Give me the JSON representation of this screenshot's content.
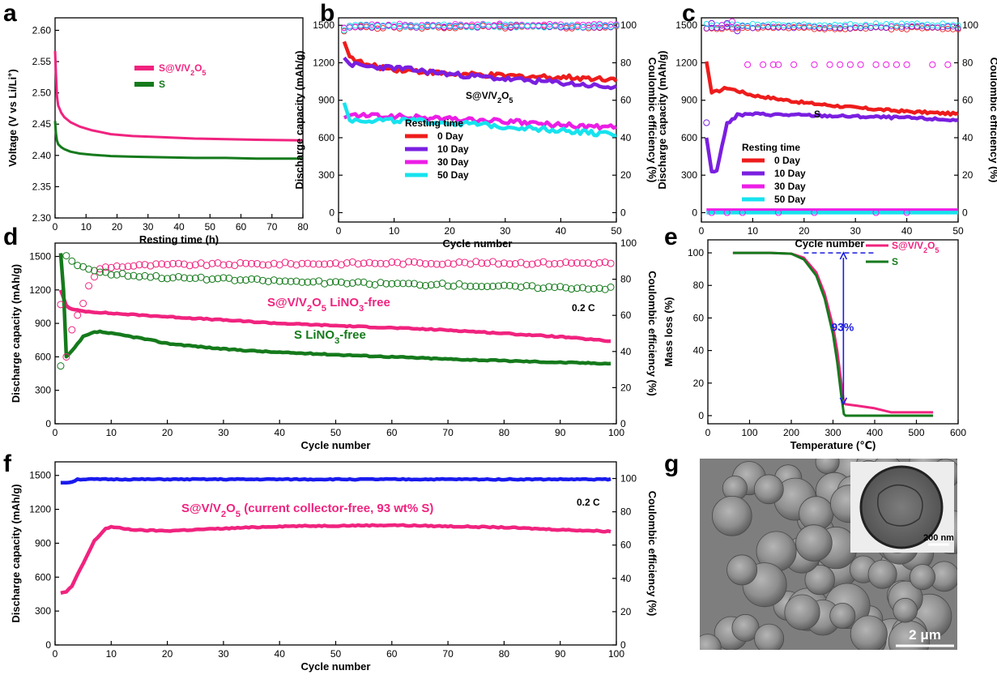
{
  "colors": {
    "pink": "#f0237f",
    "green": "#157a1c",
    "red": "#ee1c1c",
    "purple": "#7a1fe0",
    "magenta": "#ec1ee6",
    "cyan": "#16e3ee",
    "blue": "#1a1aee",
    "navy": "#1a1ae0"
  },
  "chart_data": [
    {
      "id": "a",
      "type": "line",
      "label": "a",
      "xlabel": "Resting time (h)",
      "ylabel": "Voltage (V vs Li/Li+)",
      "xlim": [
        0,
        80
      ],
      "ylim": [
        2.3,
        2.62
      ],
      "xticks": [
        0,
        10,
        20,
        30,
        40,
        50,
        60,
        70,
        80
      ],
      "yticks": [
        2.3,
        2.35,
        2.4,
        2.45,
        2.5,
        2.55,
        2.6
      ],
      "series": [
        {
          "name": "S@V/V2O5",
          "color": "pink",
          "x": [
            0,
            0.3,
            0.6,
            1,
            2,
            3,
            5,
            8,
            12,
            18,
            25,
            35,
            45,
            55,
            65,
            80
          ],
          "y": [
            2.567,
            2.53,
            2.495,
            2.48,
            2.468,
            2.461,
            2.453,
            2.446,
            2.44,
            2.434,
            2.431,
            2.429,
            2.427,
            2.426,
            2.425,
            2.424
          ]
        },
        {
          "name": "S",
          "color": "green",
          "x": [
            0,
            0.3,
            0.6,
            1,
            2,
            3,
            5,
            8,
            12,
            18,
            25,
            35,
            45,
            55,
            65,
            80
          ],
          "y": [
            2.455,
            2.435,
            2.424,
            2.418,
            2.413,
            2.41,
            2.406,
            2.403,
            2.401,
            2.399,
            2.398,
            2.397,
            2.396,
            2.396,
            2.395,
            2.395
          ]
        }
      ],
      "legend": [
        {
          "text": "S@V/V2O5",
          "color": "pink"
        },
        {
          "text": "S",
          "color": "green"
        }
      ]
    },
    {
      "id": "b",
      "type": "line",
      "label": "b",
      "annotation": "S@V/V2O5",
      "xlabel": "Cycle number",
      "ylabel": "Discharge capacity (mAh/g)",
      "y2label": "Coulombic efficiency (%)",
      "xlim": [
        0,
        50
      ],
      "ylim": [
        -75,
        1560
      ],
      "y2lim": [
        -5,
        104
      ],
      "xticks": [
        0,
        10,
        20,
        30,
        40,
        50
      ],
      "yticks": [
        0,
        300,
        600,
        900,
        1200,
        1500
      ],
      "y2ticks": [
        0,
        20,
        40,
        60,
        80,
        100
      ],
      "legend_title": "Resting time",
      "legend": [
        {
          "text": "0  Day",
          "color": "red"
        },
        {
          "text": "10 Day",
          "color": "purple"
        },
        {
          "text": "30 Day",
          "color": "magenta"
        },
        {
          "text": "50 Day",
          "color": "cyan"
        }
      ],
      "series": [
        {
          "name": "0 Day",
          "color": "red",
          "x": [
            1,
            2,
            5,
            10,
            20,
            30,
            40,
            50
          ],
          "y": [
            1370,
            1250,
            1180,
            1150,
            1110,
            1095,
            1085,
            1070
          ]
        },
        {
          "name": "10 Day",
          "color": "purple",
          "x": [
            1,
            2,
            5,
            10,
            20,
            30,
            40,
            50
          ],
          "y": [
            1240,
            1190,
            1170,
            1160,
            1110,
            1070,
            1040,
            1000
          ]
        },
        {
          "name": "30 Day",
          "color": "magenta",
          "x": [
            1,
            2,
            10,
            20,
            30,
            40,
            50
          ],
          "y": [
            760,
            780,
            770,
            750,
            730,
            700,
            680
          ]
        },
        {
          "name": "50 Day",
          "color": "cyan",
          "x": [
            1,
            2,
            10,
            20,
            30,
            40,
            50
          ],
          "y": [
            880,
            740,
            740,
            720,
            690,
            660,
            620
          ]
        }
      ],
      "ce_series": [
        {
          "color": "red",
          "value": 99,
          "first": 97
        },
        {
          "color": "purple",
          "value": 99.5,
          "first": 98
        },
        {
          "color": "magenta",
          "value": 100,
          "first": 99
        },
        {
          "color": "cyan",
          "value": 99.6,
          "first": 97
        }
      ]
    },
    {
      "id": "c",
      "type": "line",
      "label": "c",
      "annotation": "S",
      "xlabel": "Cycle number",
      "ylabel": "Discharge capacity (mAh/g)",
      "y2label": "Coulombic efficiency (%)",
      "xlim": [
        0,
        50
      ],
      "ylim": [
        -75,
        1560
      ],
      "y2lim": [
        -5,
        104
      ],
      "xticks": [
        0,
        10,
        20,
        30,
        40,
        50
      ],
      "yticks": [
        0,
        300,
        600,
        900,
        1200,
        1500
      ],
      "y2ticks": [
        0,
        20,
        40,
        60,
        80,
        100
      ],
      "legend_title": "Resting time",
      "legend": [
        {
          "text": "0  Day",
          "color": "red"
        },
        {
          "text": "10 Day",
          "color": "purple"
        },
        {
          "text": "30 Day",
          "color": "magenta"
        },
        {
          "text": "50 Day",
          "color": "cyan"
        }
      ],
      "series": [
        {
          "name": "0 Day",
          "color": "red",
          "x": [
            1,
            2,
            3,
            5,
            10,
            20,
            30,
            40,
            50
          ],
          "y": [
            1210,
            960,
            970,
            1000,
            940,
            880,
            840,
            810,
            790
          ]
        },
        {
          "name": "10 Day",
          "color": "purple",
          "x": [
            1,
            2,
            3,
            4,
            5,
            7,
            10,
            20,
            30,
            40,
            50
          ],
          "y": [
            600,
            330,
            330,
            540,
            710,
            780,
            790,
            780,
            770,
            760,
            740
          ]
        },
        {
          "name": "30 Day",
          "color": "magenta",
          "x": [
            1,
            50
          ],
          "y": [
            20,
            20
          ]
        },
        {
          "name": "50 Day",
          "color": "cyan",
          "x": [
            1,
            50
          ],
          "y": [
            0,
            0
          ]
        }
      ],
      "ce_lines": [
        {
          "color": "red",
          "value": 98.5
        },
        {
          "color": "purple",
          "value": 99
        },
        {
          "color": "cyan",
          "value": 100.3
        }
      ],
      "ce_points": [
        {
          "color": "purple",
          "x": [
            1,
            2,
            5,
            7
          ],
          "y": [
            48,
            101,
            101,
            97
          ]
        },
        {
          "color": "magenta",
          "x": [
            9,
            12,
            14,
            15,
            18,
            22,
            25,
            27,
            29,
            31,
            34,
            36,
            38,
            40,
            45,
            48
          ],
          "y": [
            79,
            79,
            79,
            79,
            79,
            79,
            79,
            79,
            79,
            79,
            79,
            79,
            79,
            79,
            79,
            79
          ]
        },
        {
          "color": "magenta",
          "x": [
            2,
            5,
            8,
            15,
            22,
            34,
            40
          ],
          "y": [
            0,
            0,
            0,
            0,
            0,
            0,
            0
          ]
        },
        {
          "color": "magenta",
          "x": [
            4,
            6
          ],
          "y": [
            100,
            102
          ]
        }
      ]
    },
    {
      "id": "d",
      "type": "line",
      "label": "d",
      "annotation": "0.2 C",
      "xlabel": "Cycle number",
      "ylabel": "Discharge capacity (mAh/g)",
      "y2label": "Coulombic efficiency (%)",
      "xlim": [
        0,
        100
      ],
      "ylim": [
        0,
        1620
      ],
      "y2lim": [
        0,
        100
      ],
      "xticks": [
        0,
        10,
        20,
        30,
        40,
        50,
        60,
        70,
        80,
        90,
        100
      ],
      "yticks": [
        0,
        300,
        600,
        900,
        1200,
        1500
      ],
      "y2ticks": [
        0,
        20,
        40,
        60,
        80,
        100
      ],
      "labels": [
        {
          "text": "S@V/V2O5 LiNO3-free",
          "color": "pink"
        },
        {
          "text": "S LiNO3-free",
          "color": "green"
        }
      ],
      "series": [
        {
          "name": "S@V/V2O5 LiNO3-free",
          "color": "pink",
          "x": [
            1,
            2,
            3,
            5,
            10,
            20,
            30,
            40,
            50,
            60,
            70,
            80,
            90,
            99
          ],
          "y": [
            1200,
            1060,
            1025,
            1010,
            990,
            960,
            930,
            900,
            880,
            860,
            840,
            810,
            780,
            740
          ]
        },
        {
          "name": "S LiNO3-free",
          "color": "green",
          "x": [
            1,
            1.5,
            2,
            3,
            5,
            7,
            8,
            10,
            15,
            20,
            30,
            40,
            50,
            60,
            70,
            80,
            90,
            99
          ],
          "y": [
            1530,
            1200,
            600,
            650,
            780,
            820,
            825,
            810,
            770,
            720,
            670,
            640,
            620,
            600,
            580,
            565,
            550,
            540
          ]
        }
      ],
      "ce_series": [
        {
          "color": "pink",
          "x": [
            1,
            2,
            3,
            4,
            5,
            6,
            8,
            10,
            20,
            40,
            60,
            80,
            99
          ],
          "y": [
            66,
            37,
            52,
            60,
            67,
            76,
            86,
            87,
            88,
            88.5,
            89,
            89,
            89
          ]
        },
        {
          "color": "green",
          "x": [
            1,
            2,
            3,
            4,
            6,
            8,
            10,
            20,
            30,
            40,
            50,
            60,
            70,
            80,
            90,
            99
          ],
          "y": [
            32,
            93,
            90,
            88,
            86,
            84,
            83,
            81,
            80,
            79,
            78,
            77.5,
            77,
            76,
            75.5,
            75
          ]
        }
      ]
    },
    {
      "id": "e",
      "type": "line",
      "label": "e",
      "annotation": "93%",
      "xlabel": "Temperature (℃)",
      "ylabel": "Mass loss (%)",
      "xlim": [
        0,
        600
      ],
      "ylim": [
        -5,
        108
      ],
      "xticks": [
        0,
        100,
        200,
        300,
        400,
        500,
        600
      ],
      "yticks": [
        0,
        20,
        40,
        60,
        80,
        100
      ],
      "legend": [
        {
          "text": "S@V/V2O5",
          "color": "pink"
        },
        {
          "text": "S",
          "color": "green"
        }
      ],
      "series": [
        {
          "name": "S@V/V2O5",
          "color": "pink",
          "x": [
            60,
            150,
            200,
            230,
            260,
            280,
            300,
            310,
            320,
            326,
            330,
            360,
            400,
            440,
            540
          ],
          "y": [
            100,
            100,
            99.5,
            97,
            88,
            75,
            55,
            40,
            20,
            8,
            7,
            6,
            4.5,
            2,
            2
          ]
        },
        {
          "name": "S",
          "color": "green",
          "x": [
            60,
            150,
            200,
            230,
            260,
            280,
            300,
            310,
            320,
            326,
            330,
            540
          ],
          "y": [
            100,
            100,
            99.5,
            96,
            86,
            72,
            50,
            33,
            12,
            1,
            0,
            0
          ]
        }
      ]
    },
    {
      "id": "f",
      "type": "line",
      "label": "f",
      "annotation": "0.2 C",
      "xlabel": "Cycle number",
      "ylabel": "Discharge capacity (mAh/g)",
      "y2label": "Coulombic efficiency (%)",
      "xlim": [
        0,
        100
      ],
      "ylim": [
        0,
        1620
      ],
      "y2lim": [
        0,
        110
      ],
      "xticks": [
        0,
        10,
        20,
        30,
        40,
        50,
        60,
        70,
        80,
        90,
        100
      ],
      "yticks": [
        0,
        300,
        600,
        900,
        1200,
        1500
      ],
      "y2ticks": [
        0,
        20,
        40,
        60,
        80,
        100
      ],
      "labels": [
        {
          "text": "S@V/V2O5 (current collector-free, 93 wt% S)",
          "color": "pink"
        }
      ],
      "series": [
        {
          "name": "S@V/V2O5",
          "color": "pink",
          "x": [
            1,
            2,
            3,
            5,
            7,
            9,
            10,
            12,
            15,
            20,
            30,
            40,
            50,
            60,
            70,
            80,
            90,
            99
          ],
          "y": [
            460,
            470,
            520,
            720,
            920,
            1030,
            1045,
            1030,
            1015,
            1010,
            1030,
            1050,
            1055,
            1060,
            1050,
            1040,
            1020,
            1005
          ]
        },
        {
          "name": "CE",
          "color": "blue",
          "axis": "y2",
          "x": [
            1,
            2,
            3,
            4,
            10,
            50,
            99
          ],
          "y": [
            97.5,
            97.5,
            98,
            99.5,
            99.5,
            99.5,
            99.5
          ]
        }
      ]
    }
  ],
  "panel_g": {
    "label": "g",
    "scale_main": "2 μm",
    "scale_inset": "200 nm"
  }
}
